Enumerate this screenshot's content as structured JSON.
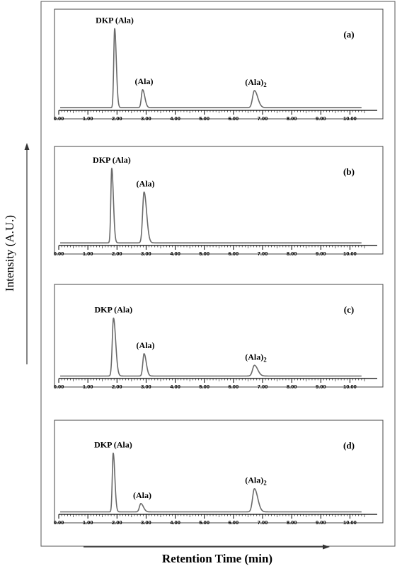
{
  "figure": {
    "y_axis_label": "Intensity (A.U.)",
    "x_axis_label": "Retention Time (min)"
  },
  "chart_data": [
    {
      "type": "line",
      "panel": "(a)",
      "xlim": [
        0,
        10.5
      ],
      "ylim": [
        0,
        100
      ],
      "x_ticks": [
        "0.00",
        "1.00",
        "2.00",
        "3.00",
        "4.00",
        "5.00",
        "6.00",
        "7.00",
        "8.00",
        "9.00",
        "10.00"
      ],
      "baseline": 3,
      "peaks": [
        {
          "label": "DKP (Ala)",
          "subscript": "",
          "x": 1.92,
          "height": 88,
          "width": 0.045
        },
        {
          "label": "(Ala)",
          "subscript": "",
          "x": 2.88,
          "height": 20,
          "width": 0.06
        },
        {
          "label": "(Ala)",
          "subscript": "2",
          "x": 6.72,
          "height": 19,
          "width": 0.09
        }
      ]
    },
    {
      "type": "line",
      "panel": "(b)",
      "xlim": [
        0,
        10.5
      ],
      "ylim": [
        0,
        100
      ],
      "x_ticks": [
        "0.00",
        "1.00",
        "2.00",
        "3.00",
        "4.00",
        "5.00",
        "6.00",
        "7.00",
        "8.00",
        "9.00",
        "10.00"
      ],
      "baseline": 3,
      "peaks": [
        {
          "label": "DKP (Ala)",
          "subscript": "",
          "x": 1.82,
          "height": 85,
          "width": 0.045
        },
        {
          "label": "(Ala)",
          "subscript": "",
          "x": 2.93,
          "height": 58,
          "width": 0.07
        }
      ]
    },
    {
      "type": "line",
      "panel": "(c)",
      "xlim": [
        0,
        10.5
      ],
      "ylim": [
        0,
        100
      ],
      "x_ticks": [
        "0.00",
        "1.00",
        "2.00",
        "3.00",
        "4.00",
        "5.00",
        "6.00",
        "7.00",
        "8.00",
        "9.00",
        "10.00"
      ],
      "baseline": 3,
      "peaks": [
        {
          "label": "DKP (Ala)",
          "subscript": "",
          "x": 1.88,
          "height": 70,
          "width": 0.06
        },
        {
          "label": "(Ala)",
          "subscript": "",
          "x": 2.93,
          "height": 27,
          "width": 0.06
        },
        {
          "label": "(Ala)",
          "subscript": "2",
          "x": 6.72,
          "height": 13,
          "width": 0.09
        }
      ]
    },
    {
      "type": "line",
      "panel": "(d)",
      "xlim": [
        0,
        10.5
      ],
      "ylim": [
        0,
        100
      ],
      "x_ticks": [
        "0.00",
        "1.00",
        "2.00",
        "3.00",
        "4.00",
        "5.00",
        "6.00",
        "7.00",
        "8.00",
        "9.00",
        "10.00"
      ],
      "baseline": 3,
      "peaks": [
        {
          "label": "DKP (Ala)",
          "subscript": "",
          "x": 1.87,
          "height": 71,
          "width": 0.045
        },
        {
          "label": "(Ala)",
          "subscript": "",
          "x": 2.82,
          "height": 10,
          "width": 0.07
        },
        {
          "label": "(Ala)",
          "subscript": "2",
          "x": 6.72,
          "height": 28,
          "width": 0.09
        }
      ]
    }
  ]
}
